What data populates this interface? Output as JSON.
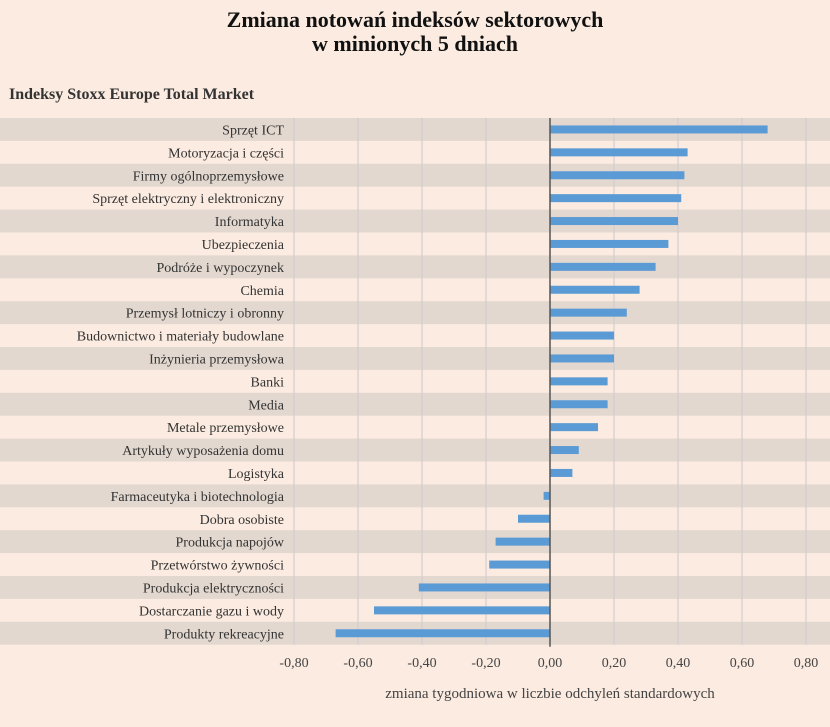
{
  "title_line1": "Zmiana notowań indeksów sektorowych",
  "title_line2": "w minionych 5 dniach",
  "subtitle": "Indeksy Stoxx Europe Total Market",
  "chart_data": {
    "type": "bar",
    "orientation": "horizontal",
    "categories": [
      "Sprzęt ICT",
      "Motoryzacja i części",
      "Firmy ogólnoprzemysłowe",
      "Sprzęt elektryczny i elektroniczny",
      "Informatyka",
      "Ubezpieczenia",
      "Podróże i wypoczynek",
      "Chemia",
      "Przemysł lotniczy i obronny",
      "Budownictwo i materiały budowlane",
      "Inżynieria przemysłowa",
      "Banki",
      "Media",
      "Metale przemysłowe",
      "Artykuły wyposażenia domu",
      "Logistyka",
      "Farmaceutyka i biotechnologia",
      "Dobra osobiste",
      "Produkcja napojów",
      "Przetwórstwo żywności",
      "Produkcja elektryczności",
      "Dostarczanie gazu i wody",
      "Produkty rekreacyjne"
    ],
    "values": [
      0.68,
      0.43,
      0.42,
      0.41,
      0.4,
      0.37,
      0.33,
      0.28,
      0.24,
      0.2,
      0.2,
      0.18,
      0.18,
      0.15,
      0.09,
      0.07,
      -0.02,
      -0.1,
      -0.17,
      -0.19,
      -0.41,
      -0.55,
      -0.67
    ],
    "xlim": [
      -0.8,
      0.8
    ],
    "xticks": [
      "-0,80",
      "-0,60",
      "-0,40",
      "-0,20",
      "0,00",
      "0,20",
      "0,40",
      "0,60",
      "0,80"
    ],
    "xlabel": "zmiana tygodniowa w liczbie odchyleń standardowych",
    "grid": true,
    "bar_color": "#5b9bd5",
    "band_color": "#e3d8cf",
    "background": "#fbebe0"
  }
}
